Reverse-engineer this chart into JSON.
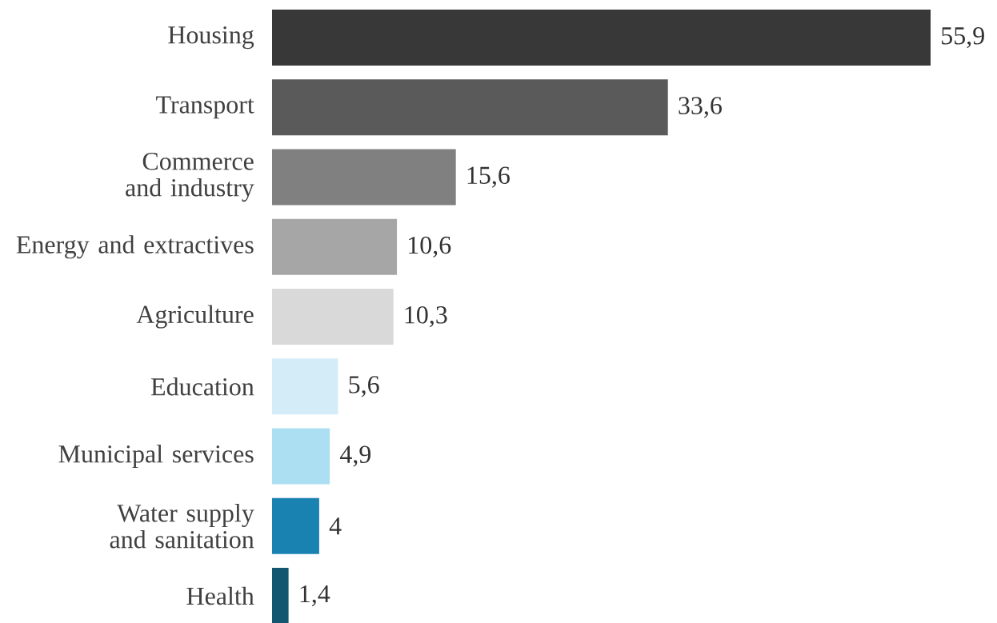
{
  "chart_data": {
    "type": "bar",
    "orientation": "horizontal",
    "tick_labels": "y",
    "categories": [
      "Housing",
      "Transport",
      "Commerce and industry",
      "Energy and extractives",
      "Agriculture",
      "Education",
      "Municipal services",
      "Water supply and sanitation",
      "Health"
    ],
    "values": [
      55.9,
      33.6,
      15.6,
      10.6,
      10.3,
      5.6,
      4.9,
      4,
      1.4
    ],
    "value_labels": [
      "55,9",
      "33,6",
      "15,6",
      "10,6",
      "10,3",
      "5,6",
      "4,9",
      "4",
      "1,4"
    ],
    "colors": [
      "#383838",
      "#5a5a5a",
      "#808080",
      "#a6a6a6",
      "#d9d9d9",
      "#d4ecf7",
      "#addff2",
      "#1a82b1",
      "#135670"
    ]
  }
}
